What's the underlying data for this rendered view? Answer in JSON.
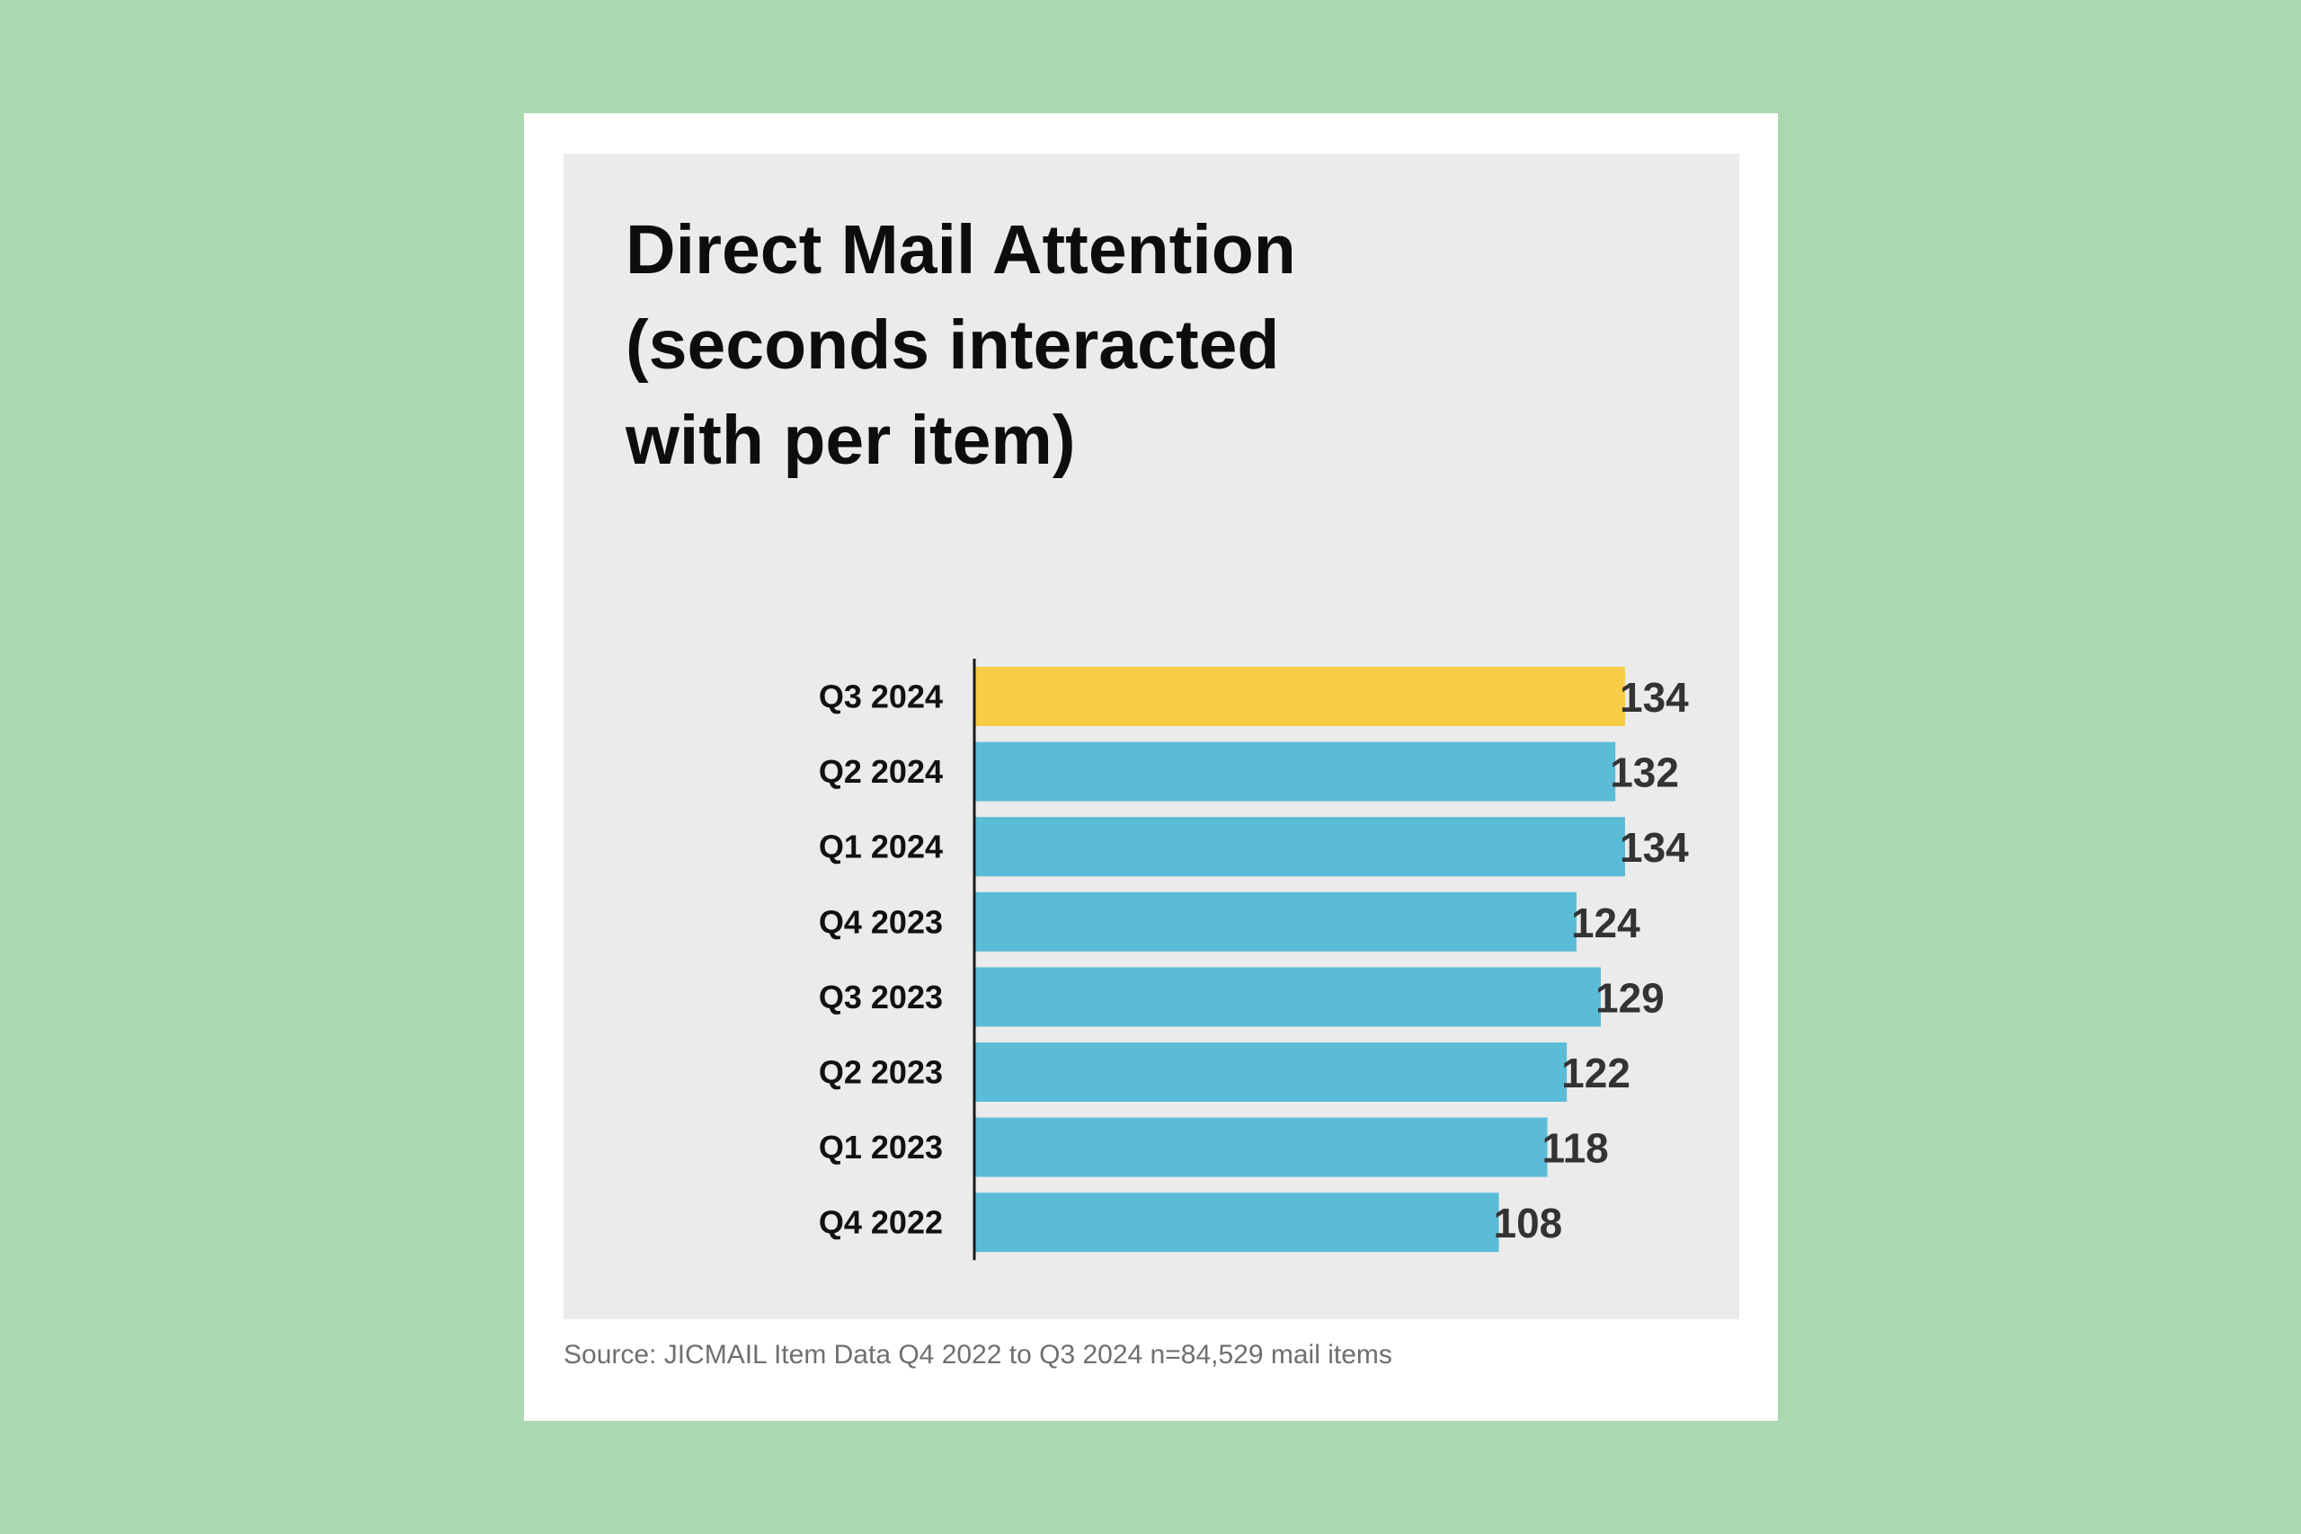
{
  "chart_data": {
    "type": "bar",
    "orientation": "horizontal",
    "title_lines": [
      "Direct Mail Attention",
      "(seconds interacted",
      "with per item)"
    ],
    "categories": [
      "Q3 2024",
      "Q2 2024",
      "Q1 2024",
      "Q4 2023",
      "Q3 2023",
      "Q2 2023",
      "Q1 2023",
      "Q4 2022"
    ],
    "values": [
      134,
      132,
      134,
      124,
      129,
      122,
      118,
      108
    ],
    "data_labels": [
      "134",
      "132",
      "134",
      "124",
      "129",
      "122",
      "118",
      "108"
    ],
    "highlight_category": "Q3 2024",
    "colors": {
      "highlight": "#f7cd47",
      "bar": "#5bbcd7",
      "label": "#333333",
      "axis": "#1a1a1a"
    },
    "xlim": [
      0,
      134
    ],
    "xaxis_visible": false,
    "grid": false,
    "legend": false
  },
  "source_note": "Source: JICMAIL Item Data Q4 2022 to Q3 2024 n=84,529 mail items"
}
